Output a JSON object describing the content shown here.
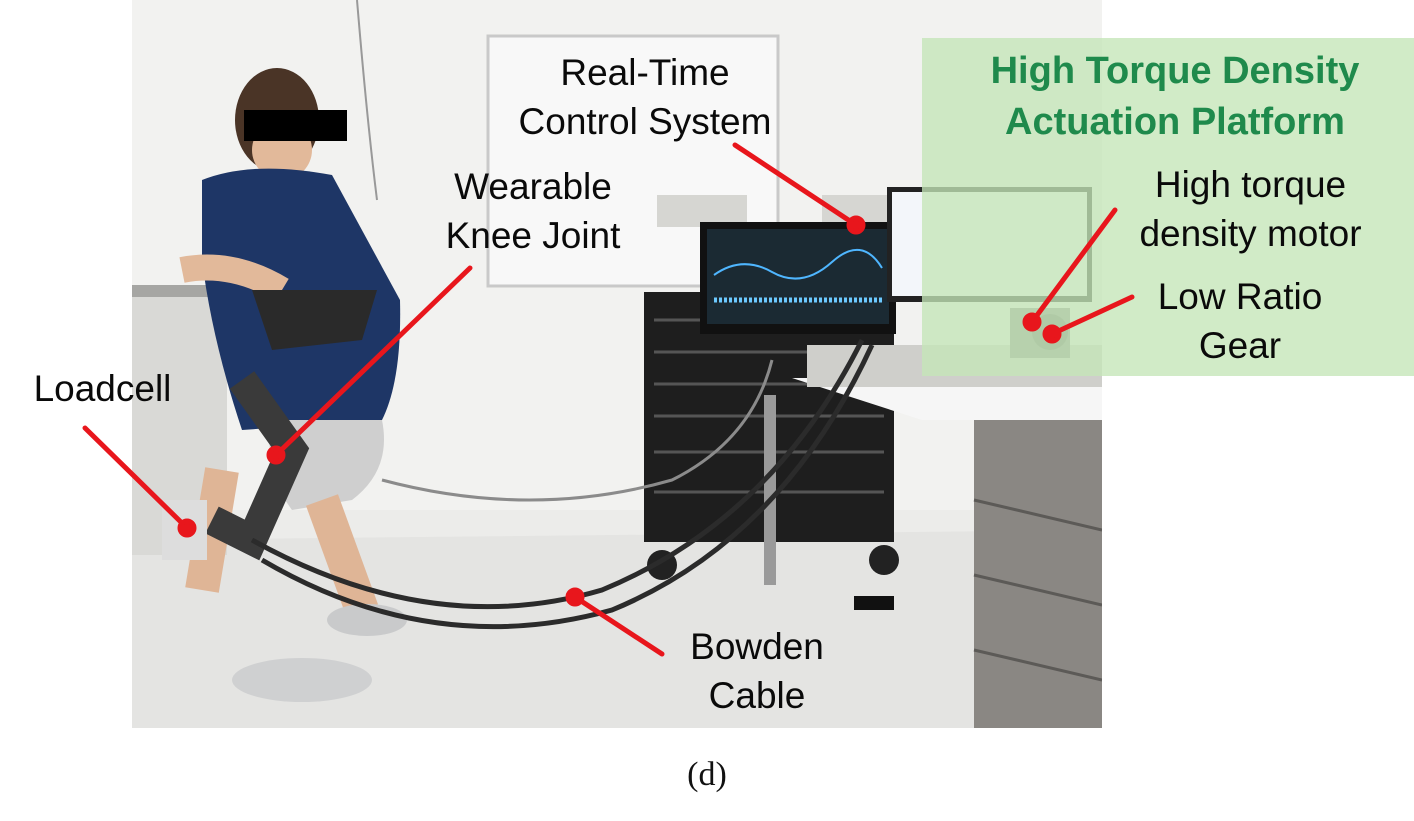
{
  "figure": {
    "caption": "(d)",
    "labels": {
      "control_system": [
        "Real-Time",
        "Control System"
      ],
      "knee_joint": [
        "Wearable",
        "Knee Joint"
      ],
      "loadcell": [
        "Loadcell"
      ],
      "bowden_cable": [
        "Bowden",
        "Cable"
      ],
      "platform_title": [
        "High Torque Density",
        "Actuation Platform"
      ],
      "motor": [
        "High torque",
        "density motor"
      ],
      "gear": [
        "Low Ratio",
        "Gear"
      ]
    },
    "colors": {
      "accent_green": "#1f8a4c",
      "panel_green": "#c4e6b7",
      "arrow_red": "#e8161c"
    }
  }
}
